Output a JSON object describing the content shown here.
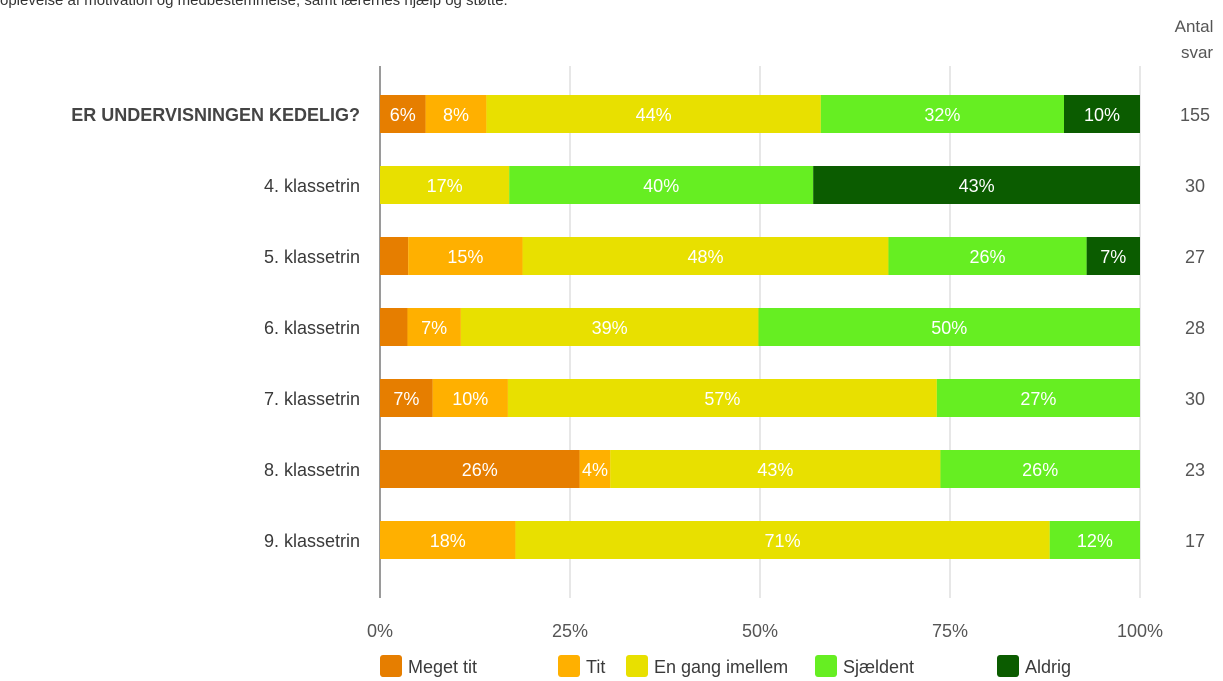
{
  "intro_text": "oplevelse af motivation og medbestemmelse, samt lærernes hjælp og støtte.",
  "count_header": [
    "Antal",
    "svar"
  ],
  "chart_data": {
    "type": "bar",
    "orientation": "horizontal",
    "stacked": true,
    "normalized": true,
    "title": "",
    "xlabel": "",
    "ylabel": "",
    "xlim": [
      0,
      100
    ],
    "x_ticks": [
      "0%",
      "25%",
      "50%",
      "75%",
      "100%"
    ],
    "grid": true,
    "legend_position": "bottom",
    "categories": [
      "ER UNDERVISNINGEN KEDELIG?",
      "4. klassetrin",
      "5. klassetrin",
      "6. klassetrin",
      "7. klassetrin",
      "8. klassetrin",
      "9. klassetrin"
    ],
    "bold_categories": [
      0
    ],
    "series": [
      {
        "name": "Meget tit",
        "color": "#e67e00",
        "values": [
          6,
          0,
          3.7,
          3.6,
          7,
          26,
          0
        ],
        "labels": [
          "6%",
          "",
          "",
          "",
          "7%",
          "26%",
          ""
        ]
      },
      {
        "name": "Tit",
        "color": "#ffb000",
        "values": [
          8,
          0,
          15,
          7,
          10,
          4,
          18
        ],
        "labels": [
          "8%",
          "",
          "15%",
          "7%",
          "10%",
          "4%",
          "18%"
        ]
      },
      {
        "name": "En gang imellem",
        "color": "#e8e000",
        "values": [
          44,
          17,
          48,
          39,
          57,
          43,
          71
        ],
        "labels": [
          "44%",
          "17%",
          "48%",
          "39%",
          "57%",
          "43%",
          "71%"
        ]
      },
      {
        "name": "Sjældent",
        "color": "#66ee22",
        "values": [
          32,
          40,
          26,
          50,
          27,
          26,
          12
        ],
        "labels": [
          "32%",
          "40%",
          "26%",
          "50%",
          "27%",
          "26%",
          "12%"
        ]
      },
      {
        "name": "Aldrig",
        "color": "#0b5c00",
        "values": [
          10,
          43,
          7,
          0,
          0,
          0,
          0
        ],
        "labels": [
          "10%",
          "43%",
          "7%",
          "",
          "",
          "",
          ""
        ]
      }
    ],
    "counts": [
      "155",
      "30",
      "27",
      "28",
      "30",
      "23",
      "17"
    ]
  }
}
